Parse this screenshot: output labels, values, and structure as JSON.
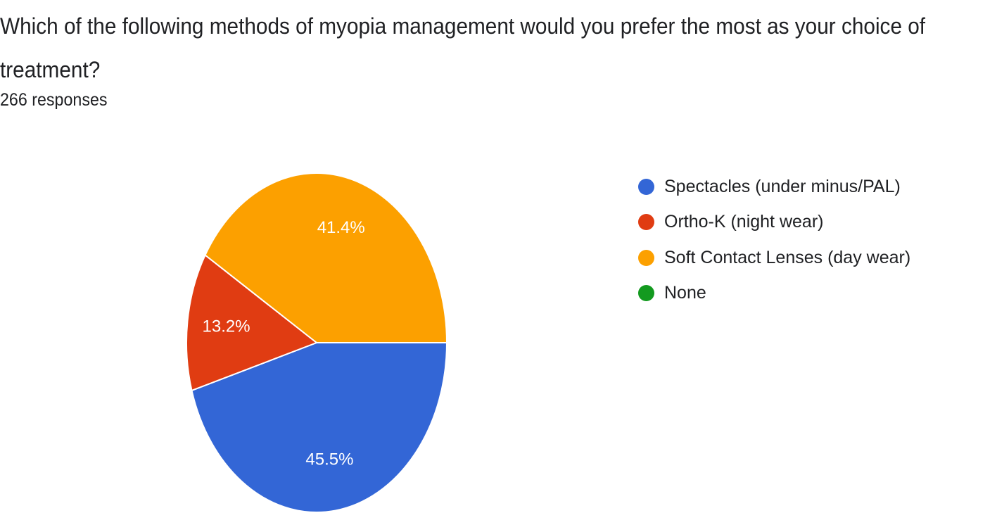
{
  "header": {
    "title": "Which of the following methods of myopia management would you prefer the most as your choice of treatment?",
    "responses": "266 responses"
  },
  "chart_data": {
    "type": "pie",
    "slices": [
      {
        "name": "Spectacles (under minus/PAL)",
        "value": 45.5,
        "label": "45.5%",
        "color": "#3366d6"
      },
      {
        "name": "Ortho-K (night wear)",
        "value": 13.2,
        "label": "13.2%",
        "color": "#e03c12"
      },
      {
        "name": "Soft Contact Lenses (day wear)",
        "value": 41.4,
        "label": "41.4%",
        "color": "#fca000"
      },
      {
        "name": "None",
        "value": 0,
        "label": "",
        "color": "#139a1f"
      }
    ],
    "legend_position": "right"
  }
}
